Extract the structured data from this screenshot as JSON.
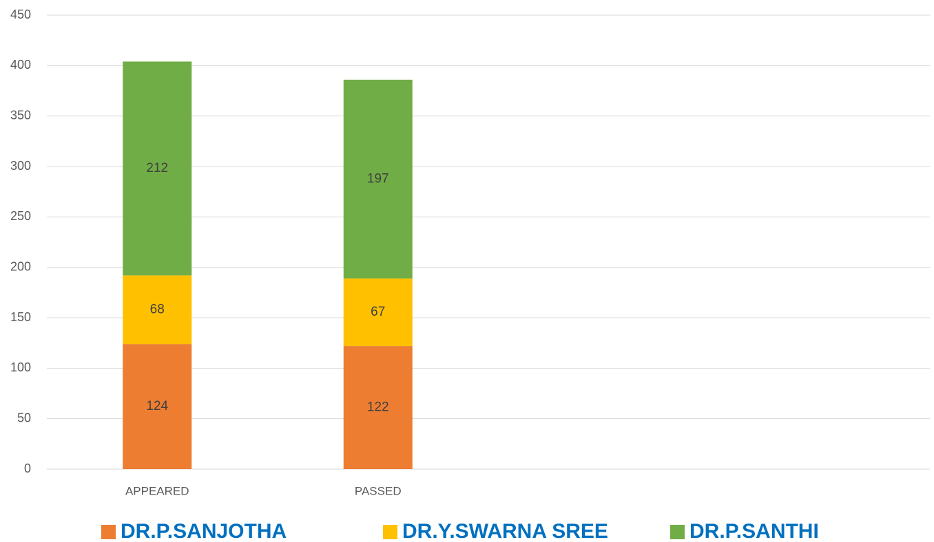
{
  "chart_data": {
    "type": "stacked_bar",
    "categories": [
      "APPEARED",
      "PASSED",
      null,
      null
    ],
    "series": [
      {
        "name": "DR.P.SANJOTHA",
        "color": "#ed7d31",
        "values": [
          124,
          122,
          null,
          null
        ]
      },
      {
        "name": "DR.Y.SWARNA SREE",
        "color": "#ffc000",
        "values": [
          68,
          67,
          null,
          null
        ]
      },
      {
        "name": "DR.P.SANTHI",
        "color": "#70ad47",
        "values": [
          212,
          197,
          null,
          null
        ]
      }
    ],
    "ylim": [
      0,
      450
    ],
    "yticks": [
      0,
      50,
      100,
      150,
      200,
      250,
      300,
      350,
      400,
      450
    ],
    "grid": true,
    "legend": "bottom"
  }
}
